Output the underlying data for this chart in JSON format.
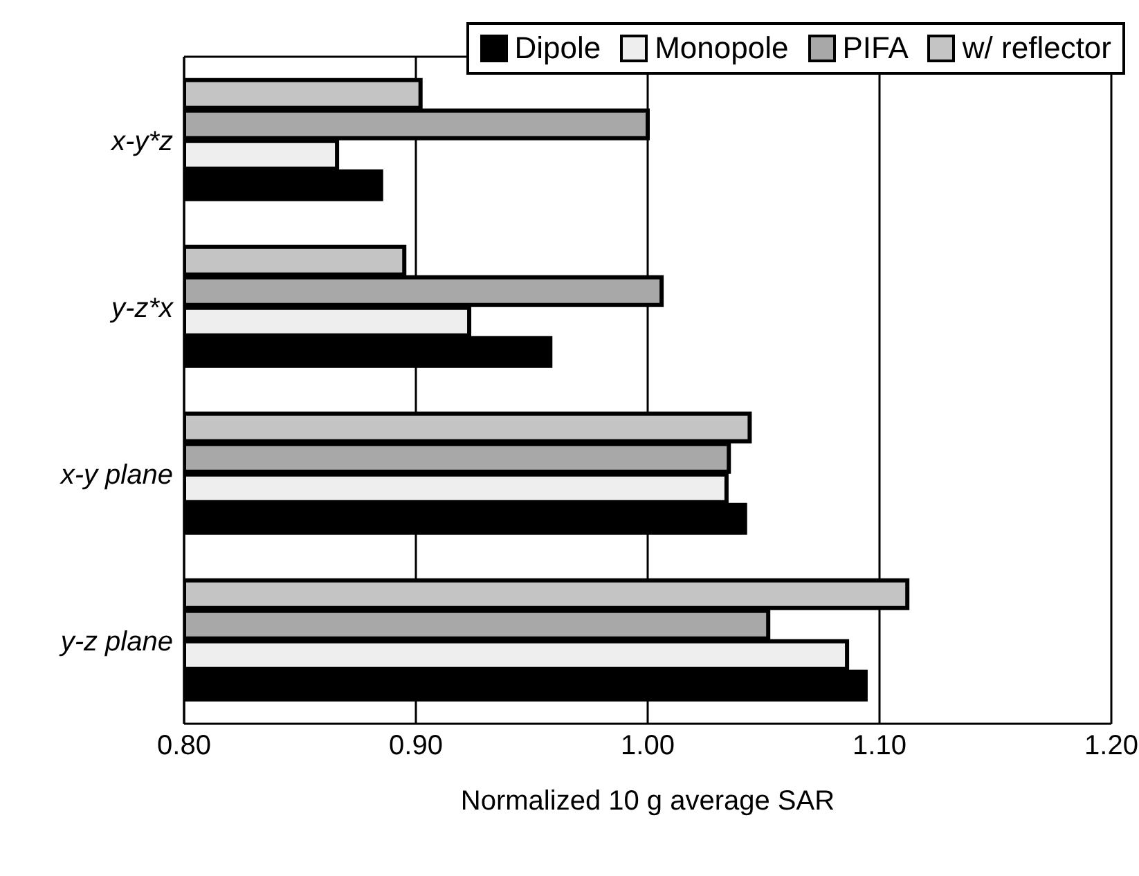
{
  "chart_data": {
    "type": "bar",
    "orientation": "horizontal",
    "xlabel": "Normalized 10 g average SAR",
    "categories": [
      "x-y*z",
      "y-z*x",
      "x-y plane",
      "y-z plane"
    ],
    "series": [
      {
        "name": "Dipole",
        "color": "#000000",
        "values": [
          0.885,
          0.958,
          1.042,
          1.094
        ]
      },
      {
        "name": "Monopole",
        "color": "#eeeeee",
        "values": [
          0.866,
          0.923,
          1.034,
          1.086
        ]
      },
      {
        "name": "PIFA",
        "color": "#a8a8a8",
        "values": [
          1.0,
          1.006,
          1.035,
          1.052
        ]
      },
      {
        "name": "w/ reflector",
        "color": "#c4c4c4",
        "values": [
          0.902,
          0.895,
          1.044,
          1.112
        ]
      }
    ],
    "xlim": [
      0.8,
      1.2
    ],
    "xticks": [
      {
        "value": 0.8,
        "label": "0.80"
      },
      {
        "value": 0.9,
        "label": "0.90"
      },
      {
        "value": 1.0,
        "label": "1.00"
      },
      {
        "value": 1.1,
        "label": "1.10"
      },
      {
        "value": 1.2,
        "label": "1.20"
      }
    ],
    "grid": "x",
    "legend": "top right"
  }
}
